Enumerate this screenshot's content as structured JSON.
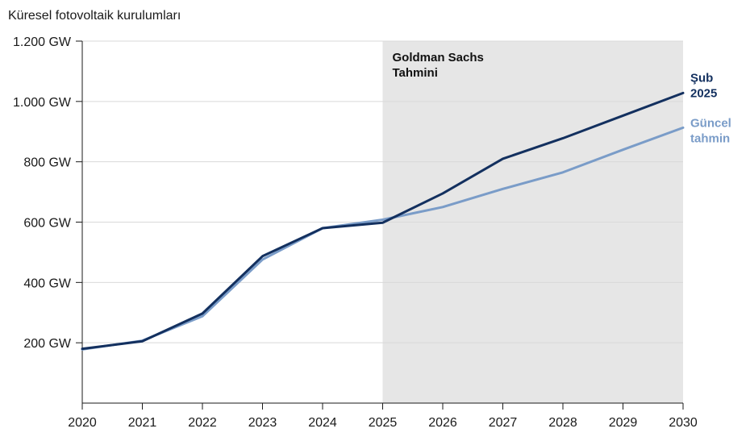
{
  "chart_data": {
    "type": "line",
    "title": "Küresel fotovoltaik kurulumları",
    "xlabel": "",
    "ylabel": "",
    "x": [
      2020,
      2021,
      2022,
      2023,
      2024,
      2025,
      2026,
      2027,
      2028,
      2029,
      2030
    ],
    "xlim": [
      2020,
      2030
    ],
    "ylim": [
      0,
      1200
    ],
    "y_ticks": [
      200,
      400,
      600,
      800,
      1000,
      1200
    ],
    "y_tick_labels": [
      "200 GW",
      "400 GW",
      "600 GW",
      "800 GW",
      "1.000 GW",
      "1.200 GW"
    ],
    "x_tick_labels": [
      "2020",
      "2021",
      "2022",
      "2023",
      "2024",
      "2025",
      "2026",
      "2027",
      "2028",
      "2029",
      "2030"
    ],
    "grid": "horizontal",
    "shaded_region": {
      "x_start": 2025,
      "x_end": 2030,
      "label_line1": "Goldman Sachs",
      "label_line2": "Tahmini",
      "color": "#e6e6e6"
    },
    "series": [
      {
        "name": "Şub 2025",
        "label_line1": "Şub",
        "label_line2": "2025",
        "color": "#13305f",
        "values": [
          180,
          205,
          297,
          487,
          580,
          598,
          695,
          810,
          878,
          953,
          1028
        ]
      },
      {
        "name": "Güncel tahmin",
        "label_line1": "Güncel",
        "label_line2": "tahmin",
        "color": "#7a9cc8",
        "values": [
          178,
          207,
          288,
          476,
          580,
          608,
          650,
          710,
          765,
          840,
          913
        ]
      }
    ]
  }
}
